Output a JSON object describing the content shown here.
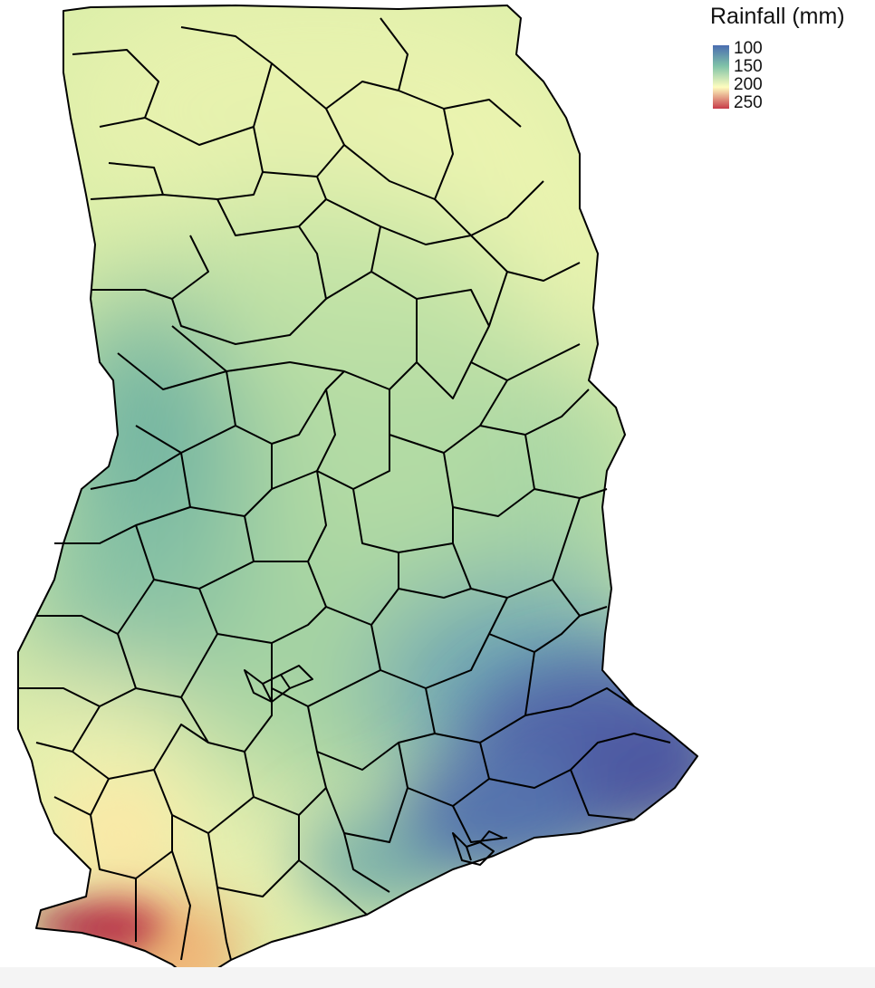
{
  "legend": {
    "title": "Rainfall (mm)",
    "ticks": [
      "100",
      "150",
      "200",
      "250"
    ],
    "colors": [
      "#4a6db0",
      "#80c3a8",
      "#fefdbf",
      "#c73b49"
    ]
  },
  "scale": {
    "min_value": 100,
    "max_value": 250,
    "palette": "Spectral (reversed): blue = low rainfall, red = high rainfall"
  },
  "map": {
    "region": "Ghana",
    "boundaries": "district boundaries",
    "high_rainfall_area": "south-west coast",
    "low_rainfall_area": "south-east coast"
  }
}
